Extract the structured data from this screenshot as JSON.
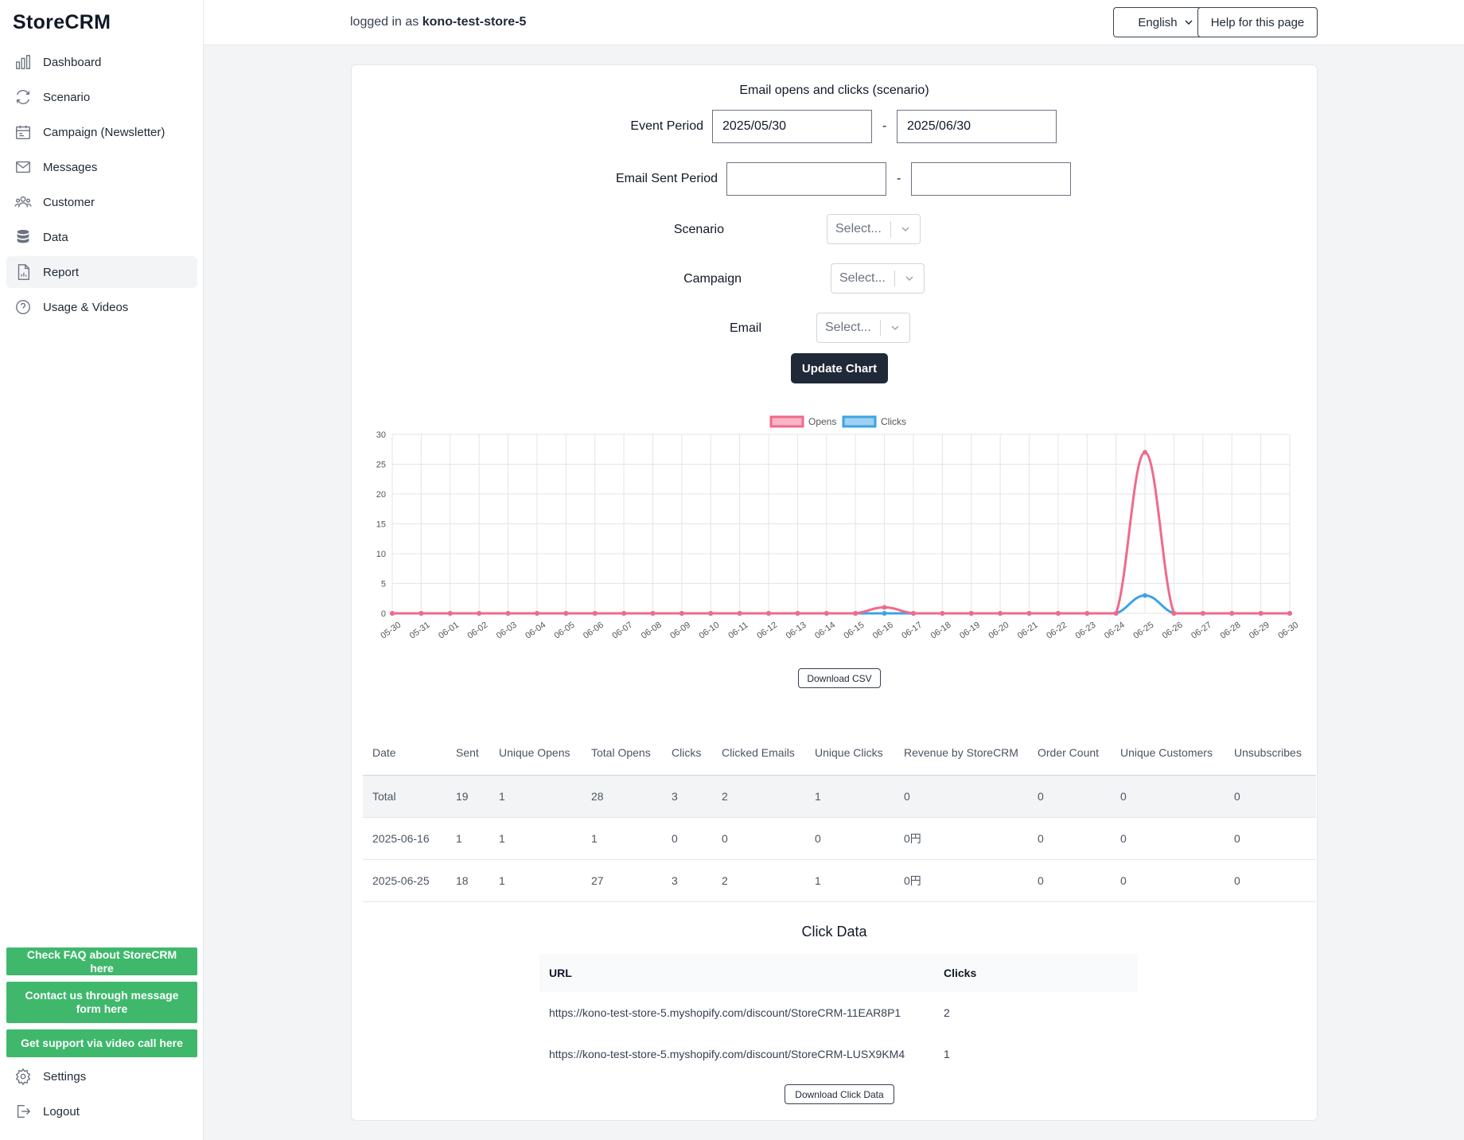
{
  "brand": "StoreCRM",
  "nav": [
    {
      "label": "Dashboard",
      "icon": "bar-chart-icon"
    },
    {
      "label": "Scenario",
      "icon": "refresh-icon"
    },
    {
      "label": "Campaign (Newsletter)",
      "icon": "calendar-icon"
    },
    {
      "label": "Messages",
      "icon": "envelope-icon"
    },
    {
      "label": "Customer",
      "icon": "users-icon"
    },
    {
      "label": "Data",
      "icon": "database-icon"
    },
    {
      "label": "Report",
      "icon": "document-chart-icon",
      "active": true
    },
    {
      "label": "Usage & Videos",
      "icon": "question-circle-icon"
    }
  ],
  "help_links": [
    "Check FAQ about StoreCRM here",
    "Contact us through message form here",
    "Get support via video call here"
  ],
  "bottom_nav": {
    "settings": "Settings",
    "logout": "Logout"
  },
  "header": {
    "logged_prefix": "logged in as",
    "store": "kono-test-store-5",
    "language": "English",
    "help": "Help for this page"
  },
  "form": {
    "title": "Email opens and clicks (scenario)",
    "event_period_label": "Event Period",
    "event_start": "2025/05/30",
    "event_end": "2025/06/30",
    "email_sent_label": "Email Sent Period",
    "sent_start": "",
    "sent_end": "",
    "dash": "-",
    "scenario_label": "Scenario",
    "campaign_label": "Campaign",
    "email_label": "Email",
    "select_placeholder": "Select...",
    "update_button": "Update Chart"
  },
  "chart_data": {
    "type": "line",
    "x": [
      "05-30",
      "05-31",
      "06-01",
      "06-02",
      "06-03",
      "06-04",
      "06-05",
      "06-06",
      "06-07",
      "06-08",
      "06-09",
      "06-10",
      "06-11",
      "06-12",
      "06-13",
      "06-14",
      "06-15",
      "06-16",
      "06-17",
      "06-18",
      "06-19",
      "06-20",
      "06-21",
      "06-22",
      "06-23",
      "06-24",
      "06-25",
      "06-26",
      "06-27",
      "06-28",
      "06-29",
      "06-30"
    ],
    "series": [
      {
        "name": "Opens",
        "color": "#f06a8a",
        "values": [
          0,
          0,
          0,
          0,
          0,
          0,
          0,
          0,
          0,
          0,
          0,
          0,
          0,
          0,
          0,
          0,
          0,
          1,
          0,
          0,
          0,
          0,
          0,
          0,
          0,
          0,
          27,
          0,
          0,
          0,
          0,
          0
        ]
      },
      {
        "name": "Clicks",
        "color": "#3ea2e4",
        "values": [
          0,
          0,
          0,
          0,
          0,
          0,
          0,
          0,
          0,
          0,
          0,
          0,
          0,
          0,
          0,
          0,
          0,
          0,
          0,
          0,
          0,
          0,
          0,
          0,
          0,
          0,
          3,
          0,
          0,
          0,
          0,
          0
        ]
      }
    ],
    "yticks": [
      "0",
      "5",
      "10",
      "15",
      "20",
      "25",
      "30"
    ],
    "ylim": [
      0,
      30
    ],
    "grid": true,
    "legend": "top-center"
  },
  "download_csv": "Download CSV",
  "stats_table": {
    "headers": [
      "Date",
      "Sent",
      "Unique Opens",
      "Total Opens",
      "Clicks",
      "Clicked Emails",
      "Unique Clicks",
      "Revenue by StoreCRM",
      "Order Count",
      "Unique Customers",
      "Unsubscribes"
    ],
    "rows": [
      [
        "Total",
        "19",
        "1",
        "28",
        "3",
        "2",
        "1",
        "0",
        "0",
        "0",
        "0"
      ],
      [
        "2025-06-16",
        "1",
        "1",
        "1",
        "0",
        "0",
        "0",
        "0円",
        "0",
        "0",
        "0"
      ],
      [
        "2025-06-25",
        "18",
        "1",
        "27",
        "3",
        "2",
        "1",
        "0円",
        "0",
        "0",
        "0"
      ]
    ]
  },
  "click_data": {
    "title": "Click Data",
    "headers": [
      "URL",
      "Clicks"
    ],
    "rows": [
      [
        "https://kono-test-store-5.myshopify.com/discount/StoreCRM-11EAR8P1",
        "2"
      ],
      [
        "https://kono-test-store-5.myshopify.com/discount/StoreCRM-LUSX9KM4",
        "1"
      ]
    ],
    "download": "Download Click Data"
  }
}
